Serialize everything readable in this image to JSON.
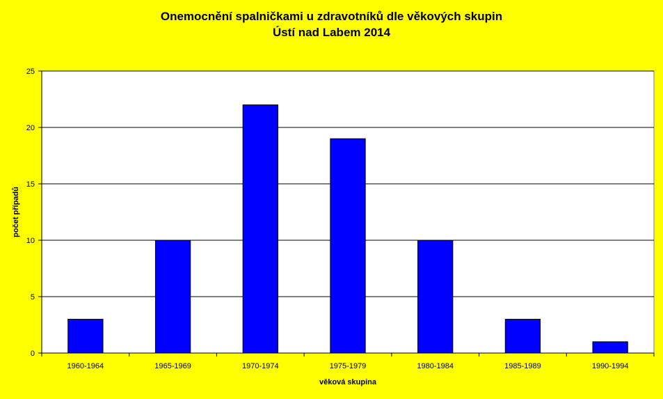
{
  "chart_data": {
    "type": "bar",
    "title": "Onemocnění spalničkami u zdravotníků dle věkových skupin",
    "subtitle": "Ústí nad Labem 2014",
    "xlabel": "věková skupina",
    "ylabel": "počet případů",
    "categories": [
      "1960-1964",
      "1965-1969",
      "1970-1974",
      "1975-1979",
      "1980-1984",
      "1985-1989",
      "1990-1994"
    ],
    "values": [
      3,
      10,
      22,
      19,
      10,
      3,
      1
    ],
    "ylim": [
      0,
      25
    ],
    "yticks": [
      0,
      5,
      10,
      15,
      20,
      25
    ],
    "grid": true,
    "legend": "none",
    "colors": {
      "background": "#FFFF00",
      "plot_area": "#FFFFFF",
      "bar": "#0000FF",
      "bar_border": "#000000",
      "gridline": "#000000"
    }
  }
}
